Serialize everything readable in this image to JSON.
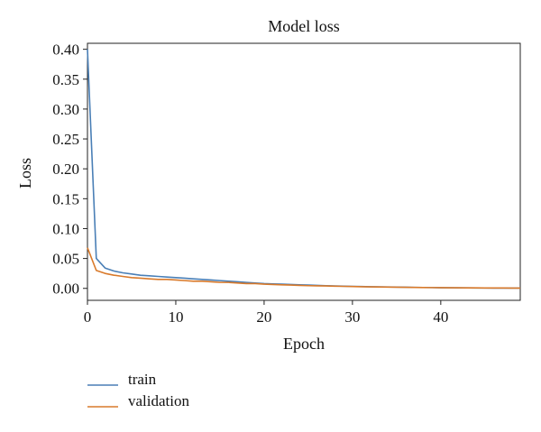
{
  "chart_data": {
    "type": "line",
    "title": "Model loss",
    "xlabel": "Epoch",
    "ylabel": "Loss",
    "xlim": [
      0,
      49
    ],
    "ylim": [
      -0.02,
      0.41
    ],
    "xticks": [
      0,
      10,
      20,
      30,
      40
    ],
    "xtick_labels": [
      "0",
      "10",
      "20",
      "30",
      "40"
    ],
    "yticks": [
      0.0,
      0.05,
      0.1,
      0.15,
      0.2,
      0.25,
      0.3,
      0.35,
      0.4
    ],
    "ytick_labels": [
      "0.00",
      "0.05",
      "0.10",
      "0.15",
      "0.20",
      "0.25",
      "0.30",
      "0.35",
      "0.40"
    ],
    "grid": false,
    "legend_position": "below plot, left",
    "x": [
      0,
      1,
      2,
      3,
      4,
      5,
      6,
      7,
      8,
      9,
      10,
      11,
      12,
      13,
      14,
      15,
      16,
      17,
      18,
      19,
      20,
      21,
      22,
      23,
      24,
      25,
      26,
      27,
      28,
      29,
      30,
      31,
      32,
      33,
      34,
      35,
      36,
      37,
      38,
      39,
      40,
      41,
      42,
      43,
      44,
      45,
      46,
      47,
      48,
      49
    ],
    "series": [
      {
        "name": "train",
        "color": "#4a7fb6",
        "values": [
          0.4,
          0.05,
          0.034,
          0.029,
          0.026,
          0.024,
          0.022,
          0.021,
          0.02,
          0.019,
          0.018,
          0.017,
          0.016,
          0.015,
          0.014,
          0.013,
          0.012,
          0.011,
          0.01,
          0.009,
          0.008,
          0.0075,
          0.007,
          0.0065,
          0.006,
          0.0055,
          0.005,
          0.0045,
          0.004,
          0.0037,
          0.0034,
          0.0031,
          0.0028,
          0.0025,
          0.0023,
          0.0021,
          0.0019,
          0.0017,
          0.0015,
          0.0013,
          0.0011,
          0.001,
          0.0009,
          0.0008,
          0.0007,
          0.0006,
          0.0005,
          0.0005,
          0.0004,
          0.0004
        ]
      },
      {
        "name": "validation",
        "color": "#d97a2b",
        "values": [
          0.068,
          0.03,
          0.025,
          0.022,
          0.02,
          0.018,
          0.017,
          0.016,
          0.015,
          0.015,
          0.014,
          0.013,
          0.012,
          0.012,
          0.011,
          0.01,
          0.01,
          0.009,
          0.008,
          0.008,
          0.007,
          0.0065,
          0.006,
          0.0055,
          0.005,
          0.0045,
          0.0042,
          0.004,
          0.0037,
          0.0034,
          0.0031,
          0.0028,
          0.0026,
          0.0024,
          0.0022,
          0.002,
          0.0018,
          0.0016,
          0.0014,
          0.0013,
          0.0012,
          0.0011,
          0.001,
          0.0009,
          0.0008,
          0.0007,
          0.0006,
          0.0006,
          0.0005,
          0.0005
        ]
      }
    ]
  }
}
